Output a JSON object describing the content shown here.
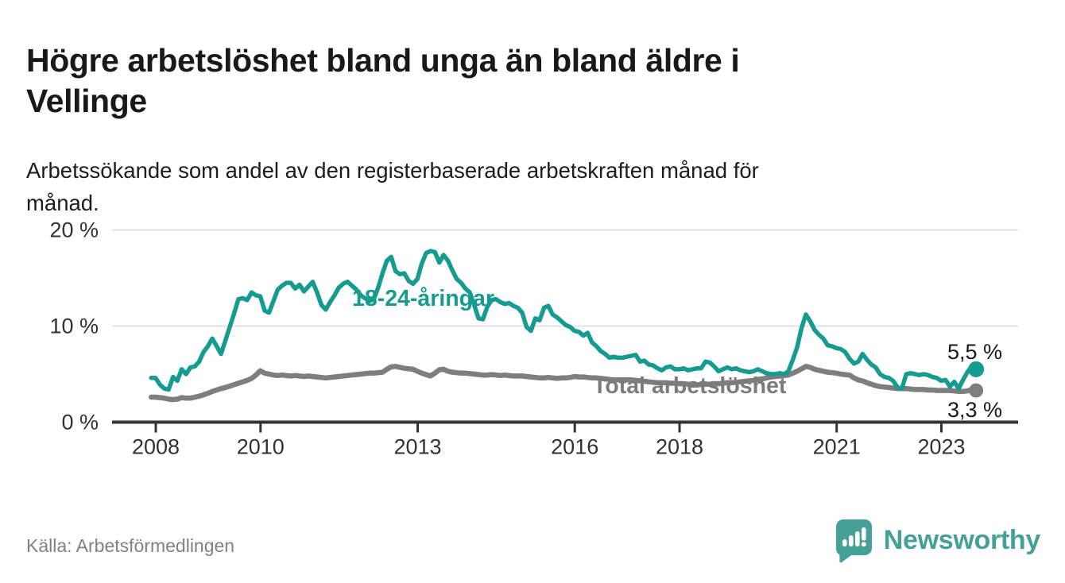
{
  "header": {
    "title_lines": [
      "Högre arbetslöshet bland unga än bland äldre i",
      "Vellinge"
    ],
    "subtitle_lines": [
      "Arbetssökande som andel av den registerbaserade arbetskraften månad för",
      "månad."
    ]
  },
  "footer": {
    "source": "Källa: Arbetsförmedlingen",
    "brand": "Newsworthy",
    "brand_icon": "newsworthy-speech-bubble-bar-chart-icon"
  },
  "colors": {
    "youth_line": "#169b90",
    "total_line": "#7e7e7e",
    "axis": "#333333",
    "grid": "#dcdcdc",
    "title_text": "#191919",
    "brand_teal": "#45a097",
    "source_gray": "#818181"
  },
  "chart_data": {
    "type": "line",
    "title": "Högre arbetslöshet bland unga än bland äldre i Vellinge",
    "subtitle": "Arbetssökande som andel av den registerbaserade arbetskraften månad för månad.",
    "unit": "%",
    "frequency": "monthly",
    "x_start": "2007-12",
    "x_end": "2023-09",
    "x_tick_years": [
      2008,
      2010,
      2013,
      2016,
      2018,
      2021,
      2023
    ],
    "y_ticks": [
      {
        "value": 0,
        "label": "0 %"
      },
      {
        "value": 10,
        "label": "10 %"
      },
      {
        "value": 20,
        "label": "20 %"
      }
    ],
    "ylim": [
      0,
      21.5
    ],
    "grid": "horizontal-only",
    "legend": "inline-labels-on-chart",
    "series": [
      {
        "name": "18-24-åringar",
        "color": "#169b90",
        "end_label": "5,5 %",
        "end_value": 5.5,
        "values": [
          4.6,
          4.6,
          3.9,
          3.5,
          3.4,
          4.7,
          4.3,
          5.5,
          5.0,
          5.7,
          5.8,
          6.3,
          7.3,
          7.9,
          8.7,
          7.9,
          7.1,
          8.5,
          9.9,
          11.3,
          12.8,
          12.9,
          12.7,
          13.5,
          13.2,
          13.1,
          11.6,
          11.4,
          12.6,
          13.8,
          14.2,
          14.5,
          14.5,
          13.9,
          14.3,
          13.6,
          14.1,
          14.6,
          13.5,
          12.2,
          11.7,
          12.5,
          13.2,
          14.0,
          14.4,
          14.6,
          14.2,
          13.8,
          13.2,
          12.9,
          12.6,
          12.8,
          14.0,
          15.5,
          16.8,
          17.2,
          15.7,
          15.4,
          15.5,
          14.7,
          14.4,
          14.9,
          16.5,
          17.6,
          17.8,
          17.7,
          16.6,
          17.4,
          16.8,
          15.8,
          14.9,
          14.5,
          13.9,
          13.5,
          12.2,
          10.8,
          10.7,
          12.0,
          12.7,
          12.8,
          12.5,
          12.3,
          12.4,
          12.1,
          11.9,
          11.4,
          9.9,
          9.5,
          10.8,
          10.6,
          11.9,
          12.1,
          11.2,
          10.9,
          10.5,
          10.1,
          9.9,
          9.5,
          9.4,
          9.0,
          9.3,
          8.3,
          7.9,
          7.4,
          7.1,
          6.7,
          6.8,
          6.7,
          6.7,
          6.8,
          6.9,
          7.0,
          6.3,
          6.4,
          6.0,
          5.9,
          5.6,
          5.4,
          5.7,
          5.8,
          5.5,
          5.5,
          5.6,
          5.4,
          5.5,
          5.6,
          5.6,
          6.3,
          6.2,
          5.8,
          5.3,
          5.5,
          5.7,
          5.5,
          5.6,
          5.4,
          5.3,
          5.2,
          5.3,
          5.5,
          5.3,
          5.1,
          5.0,
          5.0,
          5.1,
          5.0,
          5.3,
          6.5,
          7.8,
          9.8,
          11.2,
          10.5,
          9.6,
          9.1,
          8.7,
          8.0,
          7.9,
          7.7,
          7.6,
          7.3,
          6.6,
          6.1,
          6.3,
          7.1,
          6.5,
          6.0,
          5.7,
          5.0,
          4.7,
          4.6,
          4.3,
          3.6,
          3.5,
          5.0,
          5.1,
          5.0,
          4.9,
          5.0,
          4.9,
          4.7,
          4.6,
          4.3,
          4.4,
          3.7,
          4.2,
          3.5,
          4.4,
          5.2,
          5.8,
          5.5
        ]
      },
      {
        "name": "Total arbetslöshet",
        "color": "#7e7e7e",
        "end_label": "3,3 %",
        "end_value": 3.3,
        "values": [
          2.6,
          2.6,
          2.55,
          2.5,
          2.4,
          2.35,
          2.4,
          2.55,
          2.5,
          2.5,
          2.6,
          2.7,
          2.85,
          3.0,
          3.2,
          3.35,
          3.5,
          3.6,
          3.75,
          3.9,
          4.05,
          4.2,
          4.35,
          4.55,
          4.9,
          5.35,
          5.1,
          5.0,
          4.9,
          4.85,
          4.9,
          4.85,
          4.8,
          4.85,
          4.8,
          4.75,
          4.8,
          4.75,
          4.7,
          4.65,
          4.6,
          4.65,
          4.7,
          4.75,
          4.8,
          4.85,
          4.9,
          4.95,
          5.0,
          5.05,
          5.1,
          5.1,
          5.15,
          5.2,
          5.5,
          5.75,
          5.8,
          5.7,
          5.6,
          5.55,
          5.5,
          5.3,
          5.1,
          4.95,
          4.8,
          5.1,
          5.45,
          5.5,
          5.3,
          5.2,
          5.15,
          5.1,
          5.1,
          5.05,
          5.0,
          4.95,
          4.9,
          4.9,
          4.95,
          4.9,
          4.85,
          4.9,
          4.85,
          4.8,
          4.8,
          4.8,
          4.75,
          4.7,
          4.65,
          4.6,
          4.6,
          4.65,
          4.6,
          4.55,
          4.6,
          4.6,
          4.65,
          4.75,
          4.7,
          4.7,
          4.65,
          4.6,
          4.6,
          4.55,
          4.5,
          4.45,
          4.4,
          4.4,
          4.4,
          4.4,
          4.4,
          4.35,
          4.3,
          4.25,
          4.2,
          4.15,
          4.1,
          4.1,
          4.1,
          4.05,
          4.05,
          4.0,
          4.0,
          3.95,
          3.95,
          3.9,
          3.9,
          3.95,
          3.95,
          4.0,
          4.0,
          4.05,
          4.1,
          4.1,
          4.15,
          4.2,
          4.25,
          4.3,
          4.35,
          4.45,
          4.5,
          4.6,
          4.7,
          4.75,
          4.8,
          4.85,
          4.9,
          5.1,
          5.3,
          5.55,
          5.8,
          5.7,
          5.5,
          5.4,
          5.3,
          5.2,
          5.15,
          5.1,
          5.0,
          4.95,
          4.9,
          4.6,
          4.4,
          4.3,
          4.1,
          3.95,
          3.8,
          3.7,
          3.65,
          3.6,
          3.55,
          3.5,
          3.5,
          3.5,
          3.45,
          3.4,
          3.4,
          3.4,
          3.35,
          3.35,
          3.3,
          3.3,
          3.3,
          3.3,
          3.25,
          3.2,
          3.2,
          3.25,
          3.4,
          3.3
        ]
      }
    ]
  }
}
